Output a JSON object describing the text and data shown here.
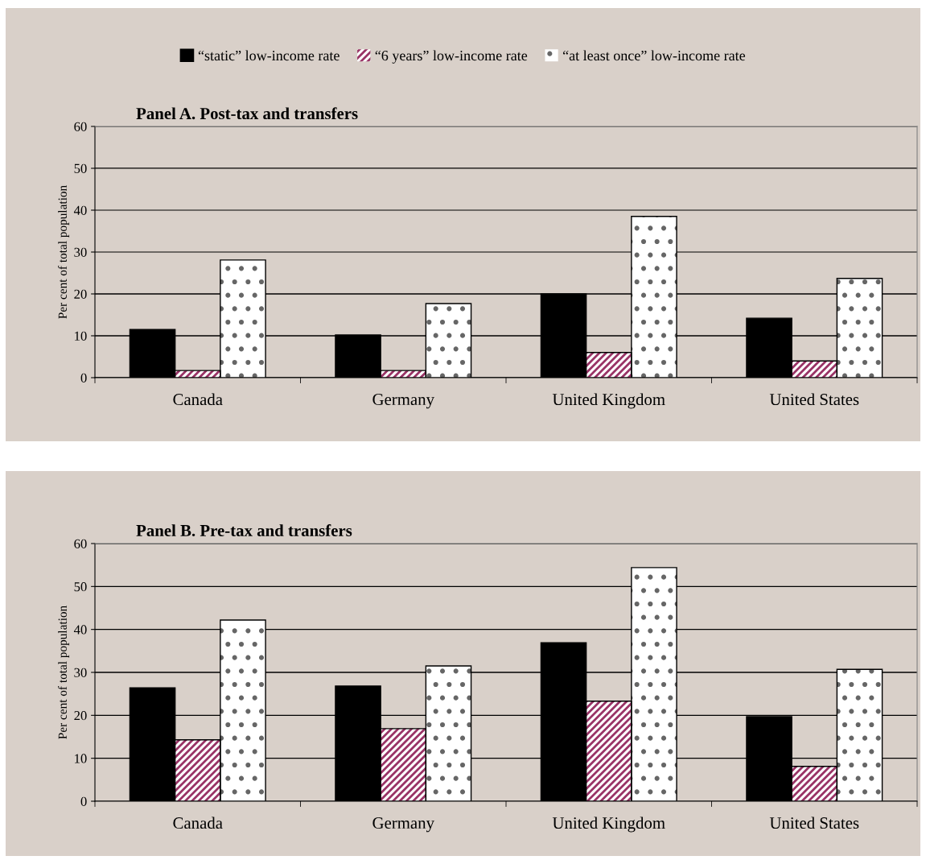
{
  "chart_data": [
    {
      "type": "bar",
      "title": "Panel A. Post-tax and transfers",
      "ylabel": "Per cent of total population",
      "categories": [
        "Canada",
        "Germany",
        "United Kingdom",
        "United States"
      ],
      "series": [
        {
          "name": "“static” low-income rate",
          "color": "#000000",
          "values": [
            11.5,
            10.2,
            20.0,
            14.2
          ]
        },
        {
          "name": "“6 years” low-income rate",
          "color": "#993366",
          "values": [
            1.7,
            1.7,
            6.0,
            4.0
          ]
        },
        {
          "name": "“at least once” low-income rate",
          "color": "#ffffff",
          "values": [
            28.1,
            17.7,
            38.5,
            23.7
          ]
        }
      ],
      "ylim": [
        0,
        60
      ],
      "yticks": [
        0,
        10,
        20,
        30,
        40,
        50,
        60
      ],
      "grid": "y",
      "legend": "top"
    },
    {
      "type": "bar",
      "title": "Panel B. Pre-tax and transfers",
      "ylabel": "Per cent of total population",
      "categories": [
        "Canada",
        "Germany",
        "United Kingdom",
        "United States"
      ],
      "series": [
        {
          "color": "#000000",
          "values": [
            26.4,
            26.8,
            36.9,
            19.7
          ]
        },
        {
          "color": "#993366",
          "values": [
            14.3,
            16.9,
            23.3,
            8.1
          ]
        },
        {
          "color": "#ffffff",
          "values": [
            42.2,
            31.5,
            54.4,
            30.7
          ]
        }
      ],
      "ylim": [
        0,
        60
      ],
      "yticks": [
        0,
        10,
        20,
        30,
        40,
        50,
        60
      ],
      "grid": "y"
    }
  ]
}
